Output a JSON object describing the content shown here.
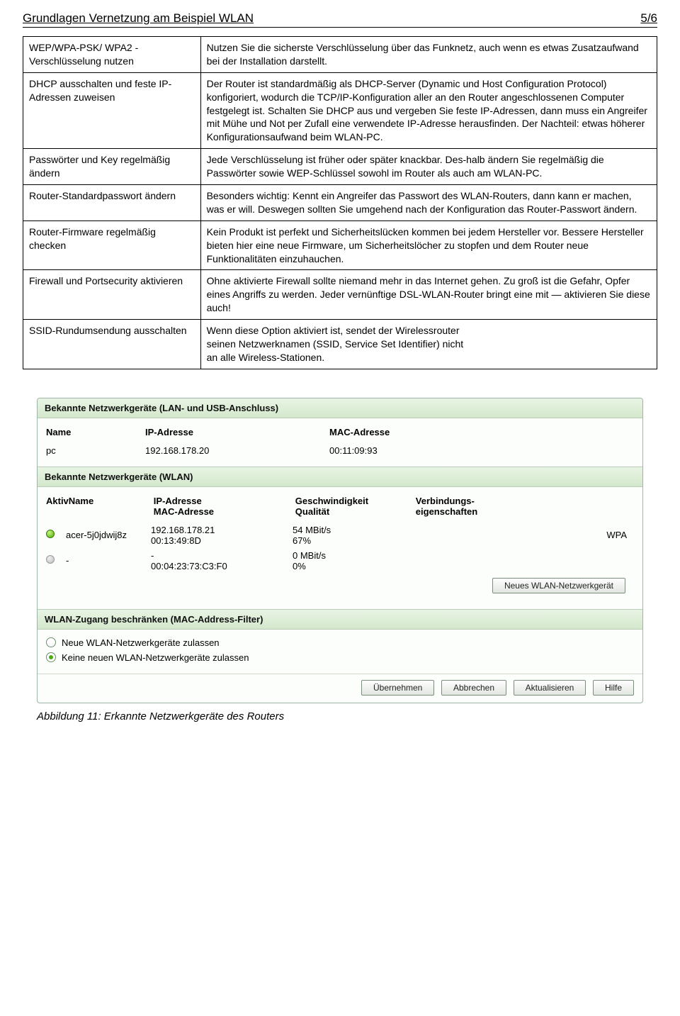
{
  "header": {
    "title": "Grundlagen Vernetzung am Beispiel WLAN",
    "page": "5/6"
  },
  "tips": [
    {
      "left": "WEP/WPA-PSK/ WPA2 -Verschlüsselung nutzen",
      "right": "Nutzen Sie die sicherste Verschlüsselung über das Funknetz, auch wenn es etwas Zusatzaufwand bei der Installation darstellt."
    },
    {
      "left": "DHCP ausschalten und feste IP-Adressen zuweisen",
      "right": "Der Router ist standardmäßig als DHCP-Server (Dynamic und Host Configuration Protocol) konfigoriert, wodurch die TCP/IP-Konfiguration aller an den Router angeschlossenen Computer festgelegt ist. Schalten Sie DHCP aus und vergeben Sie feste IP-Adressen, dann muss ein Angreifer mit Mühe und Not per Zufall eine verwendete IP-Adresse herausfinden. Der Nachteil: etwas höherer Konfigurationsaufwand beim WLAN-PC."
    },
    {
      "left": "Passwörter und Key regelmäßig ändern",
      "right": "Jede Verschlüsselung ist früher oder später knackbar. Des-halb ändern Sie regelmäßig die Passwörter sowie WEP-Schlüssel sowohl im Router als auch am WLAN-PC."
    },
    {
      "left": "Router-Standardpass­wort ändern",
      "right": "Besonders wichtig: Kennt ein Angreifer das Passwort des WLAN-Routers, dann kann er machen, was er will. Deswegen sollten Sie umgehend nach der Konfiguration das Router-Passwort ändern."
    },
    {
      "left": "Router-Firmware regelmäßig checken",
      "right": "Kein Produkt ist perfekt und Sicherheitslücken kommen bei jedem Hersteller vor. Bessere Hersteller bieten hier eine neue Firmware, um Sicherheitslöcher zu stopfen und dem Router neue Funktionalitäten einzuhauchen."
    },
    {
      "left": "Firewall und Portsecurity aktivieren",
      "right": "Ohne aktivierte Firewall sollte niemand mehr in das Internet gehen. Zu groß ist die Gefahr, Opfer eines Angriffs zu werden. Jeder vernünftige DSL-WLAN-Router bringt eine mit — aktivieren Sie diese auch!"
    },
    {
      "left": "SSID-Rundumsendung ausschalten",
      "right": "Wenn diese Option aktiviert ist, sendet der Wirelessrouter\nseinen Netzwerknamen (SSID, Service Set Identifier) nicht\nan alle Wireless-Stationen."
    }
  ],
  "router": {
    "lan": {
      "title": "Bekannte Netzwerkgeräte (LAN- und USB-Anschluss)",
      "cols": {
        "name": "Name",
        "ip": "IP-Adresse",
        "mac": "MAC-Adresse"
      },
      "rows": [
        {
          "name": "pc",
          "ip": "192.168.178.20",
          "mac": "00:11:09:93"
        }
      ]
    },
    "wlan": {
      "title": "Bekannte Netzwerkgeräte (WLAN)",
      "cols": {
        "aktiv": "Aktiv",
        "name": "Name",
        "ipmac": "IP-Adresse\nMAC-Adresse",
        "speed": "Geschwindigkeit\nQualität",
        "conn": "Verbindungs-\neigenschaften"
      },
      "rows": [
        {
          "status": "green",
          "name": "acer-5j0jdwij8z",
          "ip": "192.168.178.21",
          "mac": "00:13:49:8D",
          "speed": "54 MBit/s",
          "quality": "67%",
          "conn": "WPA"
        },
        {
          "status": "grey",
          "name": "-",
          "ip": "-",
          "mac": "00:04:23:73:C3:F0",
          "speed": "0 MBit/s",
          "quality": "0%",
          "conn": ""
        }
      ],
      "new_btn": "Neues WLAN-Netzwerkgerät"
    },
    "macfilter": {
      "title": "WLAN-Zugang beschränken (MAC-Address-Filter)",
      "opt1": "Neue WLAN-Netzwerkgeräte zulassen",
      "opt2": "Keine neuen WLAN-Netzwerkgeräte zulassen"
    },
    "buttons": {
      "apply": "Übernehmen",
      "cancel": "Abbrechen",
      "refresh": "Aktualisieren",
      "help": "Hilfe"
    }
  },
  "caption": "Abbildung 11: Erkannte Netzwerkgeräte des Routers"
}
